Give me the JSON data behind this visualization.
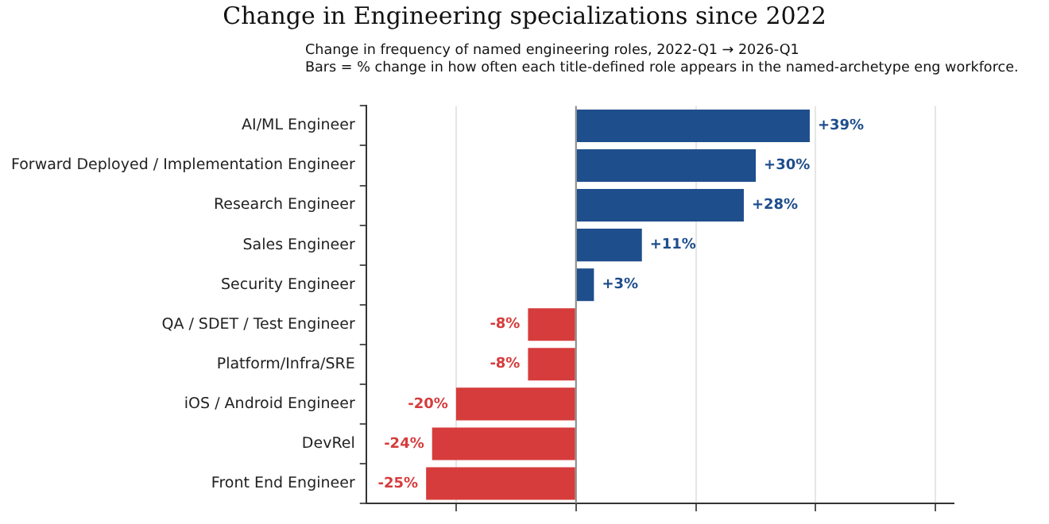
{
  "chart_data": {
    "type": "bar",
    "orientation": "horizontal",
    "title": "Change in Engineering specializations since 2022",
    "subtitle": "Change in frequency of named engineering roles, 2022-Q1 → 2026-Q1\nBars = % change in how often each title-defined role appears in the named-archetype eng workforce.",
    "categories": [
      "AI/ML Engineer",
      "Forward Deployed / Implementation Engineer",
      "Research Engineer",
      "Sales Engineer",
      "Security Engineer",
      "QA / SDET / Test Engineer",
      "Platform/Infra/SRE",
      "iOS / Android Engineer",
      "DevRel",
      "Front End Engineer"
    ],
    "values": [
      39,
      30,
      28,
      11,
      3,
      -8,
      -8,
      -20,
      -24,
      -25
    ],
    "value_labels": [
      "+39%",
      "+30%",
      "+28%",
      "+11%",
      "+3%",
      "-8%",
      "-8%",
      "-20%",
      "-24%",
      "-25%"
    ],
    "colors": [
      "#1f4e8c",
      "#1f4e8c",
      "#1f4e8c",
      "#1f4e8c",
      "#1f4e8c",
      "#d63c3c",
      "#d63c3c",
      "#d63c3c",
      "#d63c3c",
      "#d63c3c"
    ],
    "xlim": [
      -35,
      63
    ],
    "xticks": [
      {
        "value": -20,
        "label": null
      },
      {
        "value": 0,
        "label": null
      },
      {
        "value": 20,
        "label": null
      },
      {
        "value": 40,
        "label": null
      },
      {
        "value": 60,
        "label": null
      }
    ],
    "tick_labels": "y",
    "grid": "x",
    "ref_lines": [
      {
        "axis": "x",
        "value": 0,
        "color": "#888888"
      }
    ]
  }
}
